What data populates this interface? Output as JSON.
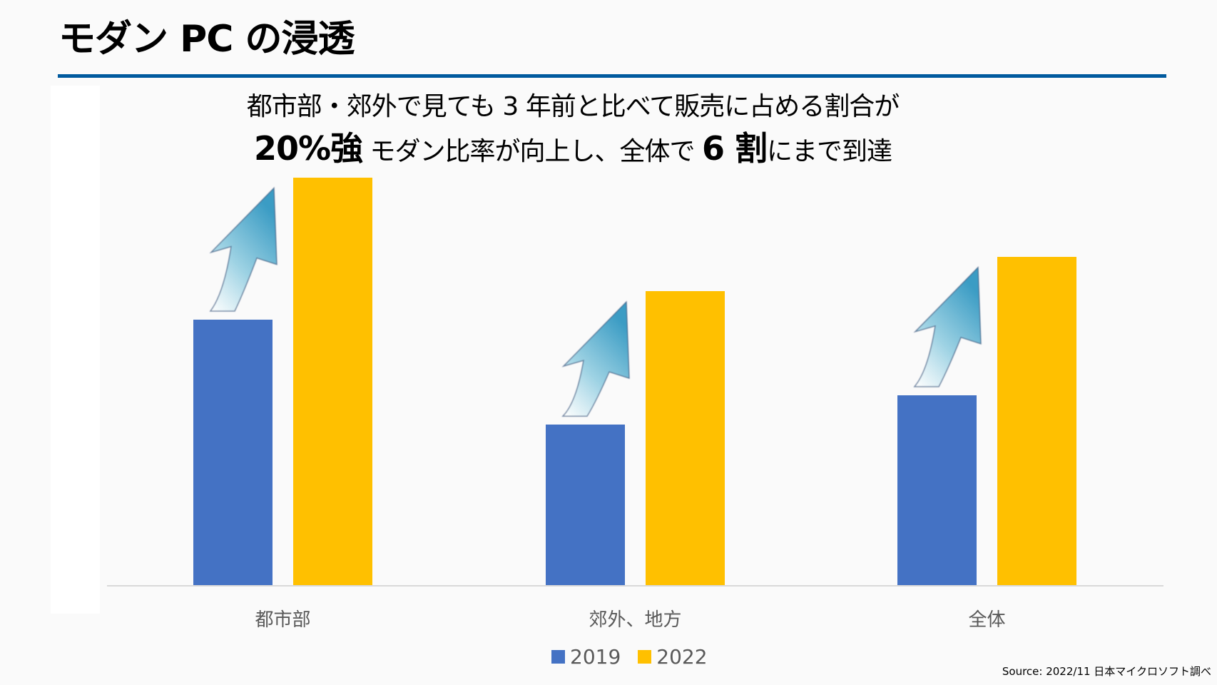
{
  "slide": {
    "title": "モダン PC の浸透",
    "headline": {
      "line1": "都市部・郊外で見ても 3 年前と比べて販売に占める割合が",
      "line2_em1": "20%強",
      "line2_mid": " モダン比率が向上し、全体で ",
      "line2_em2": "6 割",
      "line2_end": "にまで到達"
    },
    "source": "Source: 2022/11 日本マイクロソフト調べ"
  },
  "colors": {
    "series_2019": "#4472c4",
    "series_2022": "#ffc000",
    "rule": "#005a9e",
    "axis": "#d9d9d9",
    "label_text": "#595959"
  },
  "chart_data": {
    "type": "bar",
    "title": "",
    "xlabel": "",
    "ylabel": "",
    "categories": [
      "都市部",
      "郊外、地方",
      "全体"
    ],
    "series": [
      {
        "name": "2019",
        "values": [
          48.5,
          29.3,
          34.7
        ]
      },
      {
        "name": "2022",
        "values": [
          74.5,
          53.7,
          60.0
        ]
      }
    ],
    "ylim": [
      0,
      80
    ],
    "grid": false,
    "legend_position": "bottom",
    "annotations": [
      "upward arrow from 2019 bar to 2022 bar in each category"
    ],
    "value_unit": "% (estimated share of modern PCs; not labeled on chart)"
  },
  "legend": {
    "items": [
      {
        "label": "2019"
      },
      {
        "label": "2022"
      }
    ]
  }
}
